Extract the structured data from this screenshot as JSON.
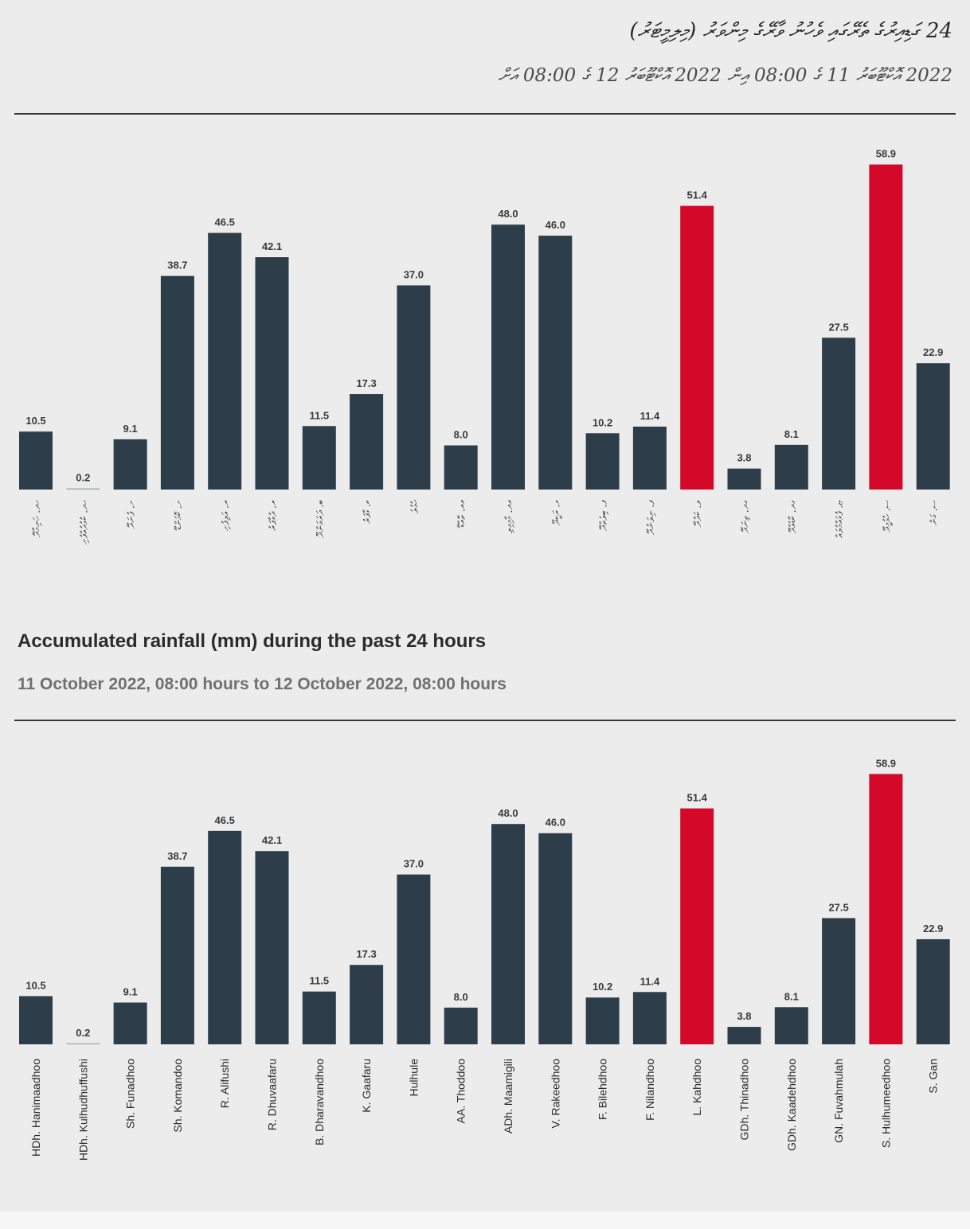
{
  "dhivehi_header": {
    "title": "24 ގަޑިއިރުގެ ތެރޭގައި ވެހުނު ވާރޭގެ މިންވަރު (މިލިމީޓަރު)",
    "subtitle": "2022 އޮކްޓޫބަރު 11 ގެ 08:00 އިން 2022 އޮކްޓޫބަރު 12 ގެ 08:00 އަށް"
  },
  "english_header": {
    "title": "Accumulated rainfall (mm) during the past 24 hours",
    "subtitle": "11 October 2022, 08:00 hours to 12 October 2022, 08:00 hours"
  },
  "colors": {
    "normal": "#2d3e4a",
    "highlight": "#d4092a",
    "background": "#ececec"
  },
  "chart_data": [
    {
      "type": "bar",
      "title": "Accumulated rainfall (mm) during the past 24 hours",
      "label_script": "dhivehi",
      "categories": [
        "ހދ. ހަނިމާދޫ",
        "ހދ. ކުޅުދުއްފުށި",
        "ށ. ފުނަދޫ",
        "ށ. ކޮމަންޑޫ",
        "ރ. އަލިފުށި",
        "ރ. ދުވާފަރު",
        "ބ. ދަރަވަންދޫ",
        "ކ. ގާފަރު",
        "ހުޅުލެ",
        "އއ. ތޮއްޑޫ",
        "އދ. މާމިގިލި",
        "ވ. ރަކީދޫ",
        "ފ. ބިލެތްދޫ",
        "ފ. ނިލަންދޫ",
        "ލ. ކަދްދޫ",
        "ގދ. ތިނަދޫ",
        "ގދ. ކާޑެއްދޫ",
        "ޏ. ފުވައްމުލައް",
        "ސ. ހުޅުމީދޫ",
        "ސ. ގަން"
      ],
      "values": [
        10.5,
        0.2,
        9.1,
        38.7,
        46.5,
        42.1,
        11.5,
        17.3,
        37.0,
        8.0,
        48.0,
        46.0,
        10.2,
        11.4,
        51.4,
        3.8,
        8.1,
        27.5,
        58.9,
        22.9
      ],
      "value_labels": [
        "10.5",
        "0.2",
        "9.1",
        "38.7",
        "46.5",
        "42.1",
        "11.5",
        "17.3",
        "37.0",
        "8.0",
        "48.0",
        "46.0",
        "10.2",
        "11.4",
        "51.4",
        "3.8",
        "8.1",
        "27.5",
        "58.9",
        "22.9"
      ],
      "highlight": [
        false,
        false,
        false,
        false,
        false,
        false,
        false,
        false,
        false,
        false,
        false,
        false,
        false,
        false,
        true,
        false,
        false,
        false,
        true,
        false
      ],
      "ylim": [
        0,
        60
      ],
      "grid": false,
      "xlabel": "",
      "ylabel": ""
    },
    {
      "type": "bar",
      "title": "Accumulated rainfall (mm) during the past 24 hours",
      "label_script": "english",
      "categories": [
        "HDh. Hanimaadhoo",
        "HDh. Kulhudhuffushi",
        "Sh. Funadhoo",
        "Sh. Komandoo",
        "R. Alifushi",
        "R. Dhuvaafaru",
        "B. Dharavandhoo",
        "K. Gaafaru",
        "Hulhule",
        "AA. Thoddoo",
        "ADh. Maamigili",
        "V. Rakeedhoo",
        "F. Bilehdhoo",
        "F. Nilandhoo",
        "L. Kahdhoo",
        "GDh. Thinadhoo",
        "GDh. Kaadehdhoo",
        "GN. Fuvahmulah",
        "S. Hulhumeedhoo",
        "S. Gan"
      ],
      "values": [
        10.5,
        0.2,
        9.1,
        38.7,
        46.5,
        42.1,
        11.5,
        17.3,
        37.0,
        8.0,
        48.0,
        46.0,
        10.2,
        11.4,
        51.4,
        3.8,
        8.1,
        27.5,
        58.9,
        22.9
      ],
      "value_labels": [
        "10.5",
        "0.2",
        "9.1",
        "38.7",
        "46.5",
        "42.1",
        "11.5",
        "17.3",
        "37.0",
        "8.0",
        "48.0",
        "46.0",
        "10.2",
        "11.4",
        "51.4",
        "3.8",
        "8.1",
        "27.5",
        "58.9",
        "22.9"
      ],
      "highlight": [
        false,
        false,
        false,
        false,
        false,
        false,
        false,
        false,
        false,
        false,
        false,
        false,
        false,
        false,
        true,
        false,
        false,
        false,
        true,
        false
      ],
      "ylim": [
        0,
        60
      ],
      "grid": false,
      "xlabel": "",
      "ylabel": ""
    }
  ]
}
